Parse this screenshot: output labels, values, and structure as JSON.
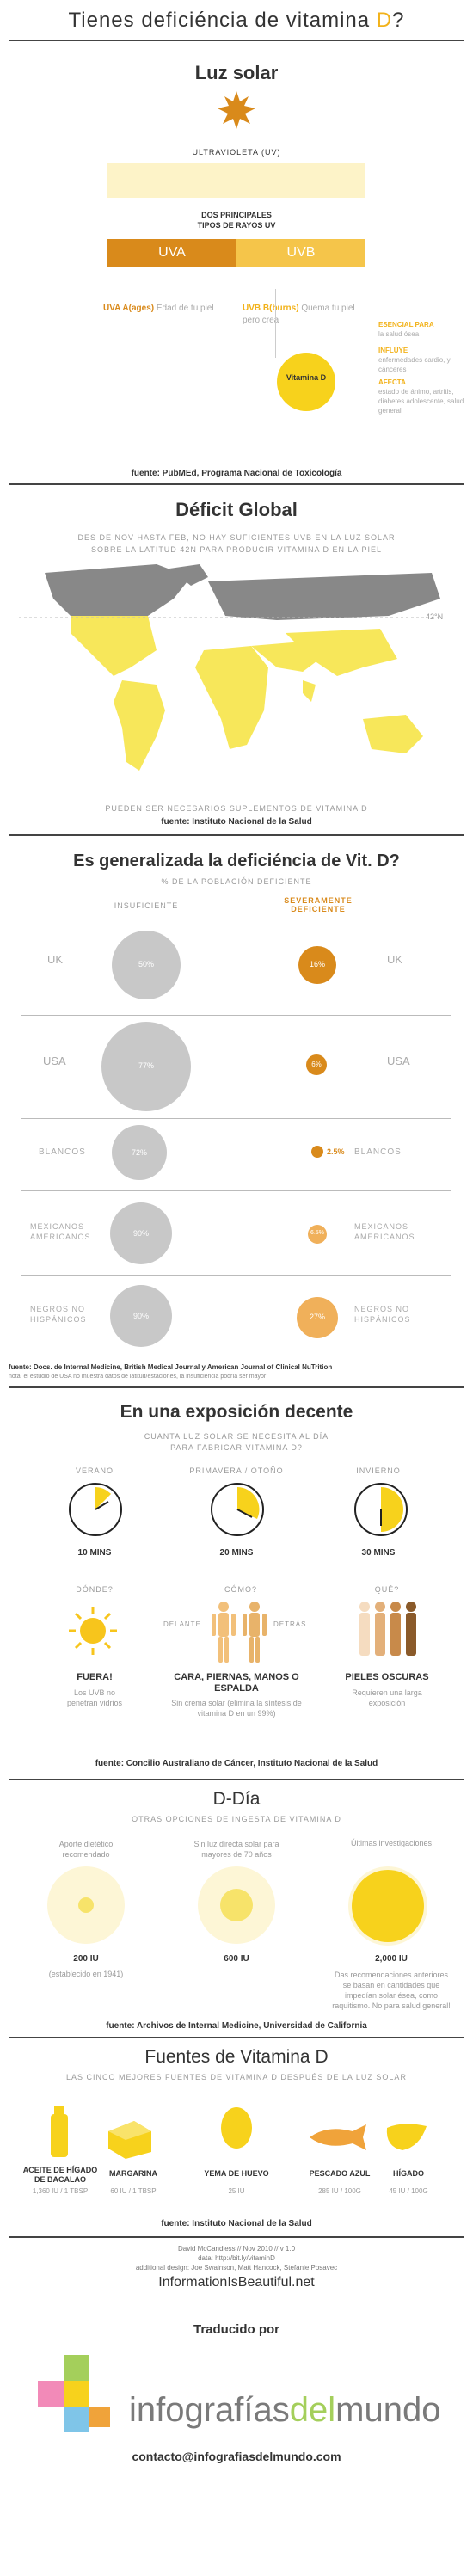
{
  "title": {
    "main": "Tienes deficiéncia de vitamina ",
    "d": "D",
    "q": "?"
  },
  "luz": {
    "title": "Luz solar",
    "uv_label": "ULTRAVIOLETA (UV)",
    "tipos": "DOS PRINCIPALES\nTIPOS DE RAYOS UV",
    "uva": "UVA",
    "uvb": "UVB",
    "uva_desc_a": "UVA A(ages)",
    "uva_desc_b": "Edad de tu piel",
    "uvb_desc_a": "UVB B(burns)",
    "uvb_desc_b": "Quema tu piel pero crea",
    "vitd": "Vitamina D",
    "esencial": "ESENCIAL PARA",
    "esencial_d": "la salud ósea",
    "influye": "INFLUYE",
    "influye_d": "enfermedades cardio, y cánceres",
    "afecta": "AFECTA",
    "afecta_d": "estado de ánimo, artritis, diabetes adolescente, salud general",
    "fuente": "fuente: PubMEd, Programa Nacional de Toxicología"
  },
  "global": {
    "title": "Déficit Global",
    "line1": "DES DE NOV HASTA FEB, NO HAY SUFICIENTES UVB EN LA LUZ SOLAR",
    "line2": "SOBRE LA LATITUD 42N PARA PRODUCIR VITAMINA D EN LA PIEL",
    "lat": "42°N",
    "bottom": "PUEDEN SER NECESARIOS SUPLEMENTOS DE VITAMINA D",
    "fuente": "fuente: Instituto Nacional de la Salud"
  },
  "gen": {
    "title": "Es generalizada la deficiéncia de Vit. D?",
    "subtitle": "% DE LA POBLACIÓN DEFICIENTE",
    "col1": "INSUFICIENTE",
    "col2": "SEVERAMENTE DEFICIENTE",
    "rows": [
      {
        "l": "UK",
        "v1": "50%",
        "v2": "16%",
        "r": "UK"
      },
      {
        "l": "USA",
        "v1": "77%",
        "v2": "6%",
        "r": "USA"
      },
      {
        "l": "BLANCOS",
        "v1": "72%",
        "v2": "2.5%",
        "r": "BLANCOS"
      },
      {
        "l": "MEXICANOS AMERICANOS",
        "v1": "90%",
        "v2": "6.5%",
        "r": "MEXICANOS AMERICANOS"
      },
      {
        "l": "NEGROS NO HISPÁNICOS",
        "v1": "90%",
        "v2": "27%",
        "r": "NEGROS NO HISPÁNICOS"
      }
    ],
    "fuente": "fuente: Docs. de Internal Medicine, British Medical Journal y American Journal of Clinical NuTrition",
    "note": "nota: el estudio de USA no muestra datos de latitud/estaciones, la insuficiencia podría ser mayor"
  },
  "expo": {
    "title": "En una exposición decente",
    "sub1": "CUANTA LUZ SOLAR SE NECESITA AL DÍA",
    "sub2": "PARA FABRICAR VITAMINA D?",
    "seasons": [
      {
        "name": "VERANO",
        "mins": "10 MINS"
      },
      {
        "name": "PRIMAVERA / OTOÑO",
        "mins": "20 MINS"
      },
      {
        "name": "INVIERNO",
        "mins": "30 MINS"
      }
    ],
    "q1": "DÓNDE?",
    "q2": "CÓMO?",
    "q3": "QUÉ?",
    "delante": "DELANTE",
    "detras": "DETRÁS",
    "a1": "FUERA!",
    "a1d": "Los UVB no penetran vidrios",
    "a2": "CARA, PIERNAS, MANOS O ESPALDA",
    "a2d": "Sin crema solar (elimina la síntesis de vitamina D en un 99%)",
    "a3": "PIELES OSCURAS",
    "a3d": "Requieren una larga exposición",
    "fuente": "fuente: Concilio Australiano de Cáncer, Instituto Nacional de la Salud"
  },
  "dia": {
    "title": "D-Día",
    "subtitle": "OTRAS OPCIONES DE INGESTA DE VITAMINA D",
    "c1h": "Aporte dietético recomendado",
    "c1v": "200 IU",
    "c1d": "(establecido en 1941)",
    "c2h": "Sin luz directa solar para mayores de 70 años",
    "c2v": "600 IU",
    "c3h": "Últimas investigaciones",
    "c3v": "2,000 IU",
    "c3d": "Das recomendaciones anteriores se basan en cantidades que impedían solar ésea, como raquitismo. No para salud general!",
    "fuente": "fuente: Archivos de Internal Medicine, Universidad de California"
  },
  "fuentes": {
    "title": "Fuentes de Vitamina D",
    "subtitle": "LAS CINCO MEJORES FUENTES DE VITAMINA D DESPUÉS DE LA LUZ SOLAR",
    "items": [
      {
        "name": "ACEITE DE HÍGADO DE BACALAO",
        "val": "1,360 IU / 1 TBSP"
      },
      {
        "name": "MARGARINA",
        "val": "60 IU / 1 TBSP"
      },
      {
        "name": "YEMA DE HUEVO",
        "val": "25 IU"
      },
      {
        "name": "PESCADO AZUL",
        "val": "285 IU / 100G"
      },
      {
        "name": "HÍGADO",
        "val": "45 IU / 100G"
      }
    ],
    "fuente": "fuente: Instituto Nacional de la Salud"
  },
  "credits": {
    "l1": "David McCandless // Nov 2010 // v 1.0",
    "l2": "data: http://bit.ly/vitaminD",
    "l3": "additional design: Joe Swainson, Matt Hancock, Stefanie Posavec",
    "iib": "InformationIsBeautiful.net",
    "traducido": "Traducido por",
    "brand_a": "infografías",
    "brand_b": "del",
    "brand_c": "mundo",
    "contact": "contacto@infografiasdelmundo.com"
  },
  "colors": {
    "gold": "#f2b21a",
    "orange": "#d98a1b",
    "pale": "#fdf3c8",
    "gray": "#c8c8c8"
  }
}
